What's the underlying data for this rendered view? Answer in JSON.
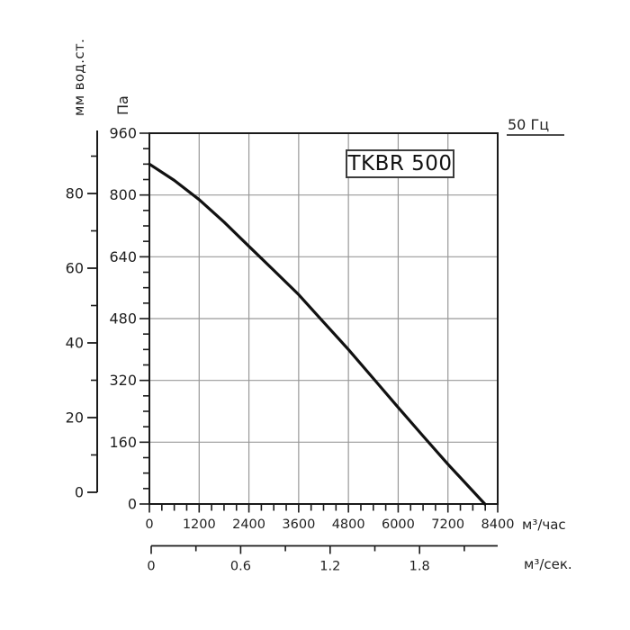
{
  "labels": {
    "model": "TKBR 500",
    "frequency": "50 Гц",
    "flow_hour": "м³/час",
    "flow_sec": "м³/сек.",
    "pressure_pa": "Па",
    "pressure_mm": "мм вод.ст."
  },
  "colors": {
    "background": "#ffffff",
    "axis": "#1a1a1a",
    "grid": "#999999",
    "curve": "#111111",
    "text": "#1f1f1f",
    "underline": "#4d4d4d"
  },
  "chart_data": {
    "type": "line",
    "title": "TKBR 500",
    "annotation": "50 Гц",
    "grid": true,
    "xlim": [
      0,
      8400
    ],
    "ylim": [
      0,
      960
    ],
    "x_axis": {
      "label": "м³/час",
      "tick_values": [
        0,
        1200,
        2400,
        3600,
        4800,
        6000,
        7200,
        8400
      ],
      "tick_labels": [
        "0",
        "1200",
        "2400",
        "3600",
        "4800",
        "6000",
        "7200",
        "8400"
      ],
      "minor_step": 300
    },
    "x_axis_secondary": {
      "label": "м³/сек.",
      "tick_values": [
        0,
        0.3,
        0.6,
        0.9,
        1.2,
        1.5,
        1.8,
        2.1
      ],
      "labeled_ticks": [
        {
          "value": 0,
          "label": "0"
        },
        {
          "value": 0.6,
          "label": "0.6"
        },
        {
          "value": 1.2,
          "label": "1.2"
        },
        {
          "value": 1.8,
          "label": "1.8"
        }
      ]
    },
    "y_axis": {
      "label": "Па",
      "tick_values": [
        0,
        160,
        320,
        480,
        640,
        800,
        960
      ],
      "tick_labels": [
        "0",
        "160",
        "320",
        "480",
        "640",
        "800",
        "960"
      ],
      "minor_step": 40
    },
    "y_axis_secondary": {
      "label": "мм вод.ст.",
      "tick_values": [
        0,
        20,
        40,
        60,
        80
      ],
      "tick_labels": [
        "0",
        "20",
        "40",
        "60",
        "80"
      ],
      "minor_tick_values": [
        10,
        30,
        50,
        70,
        90
      ]
    },
    "series": [
      {
        "name": "TKBR 500, 50 Гц",
        "points": [
          [
            0,
            880
          ],
          [
            600,
            838
          ],
          [
            1200,
            788
          ],
          [
            1800,
            730
          ],
          [
            2400,
            667
          ],
          [
            3000,
            605
          ],
          [
            3600,
            542
          ],
          [
            4200,
            471
          ],
          [
            4800,
            400
          ],
          [
            5400,
            325
          ],
          [
            6000,
            250
          ],
          [
            6600,
            176
          ],
          [
            7200,
            103
          ],
          [
            8090,
            0
          ]
        ]
      }
    ]
  }
}
